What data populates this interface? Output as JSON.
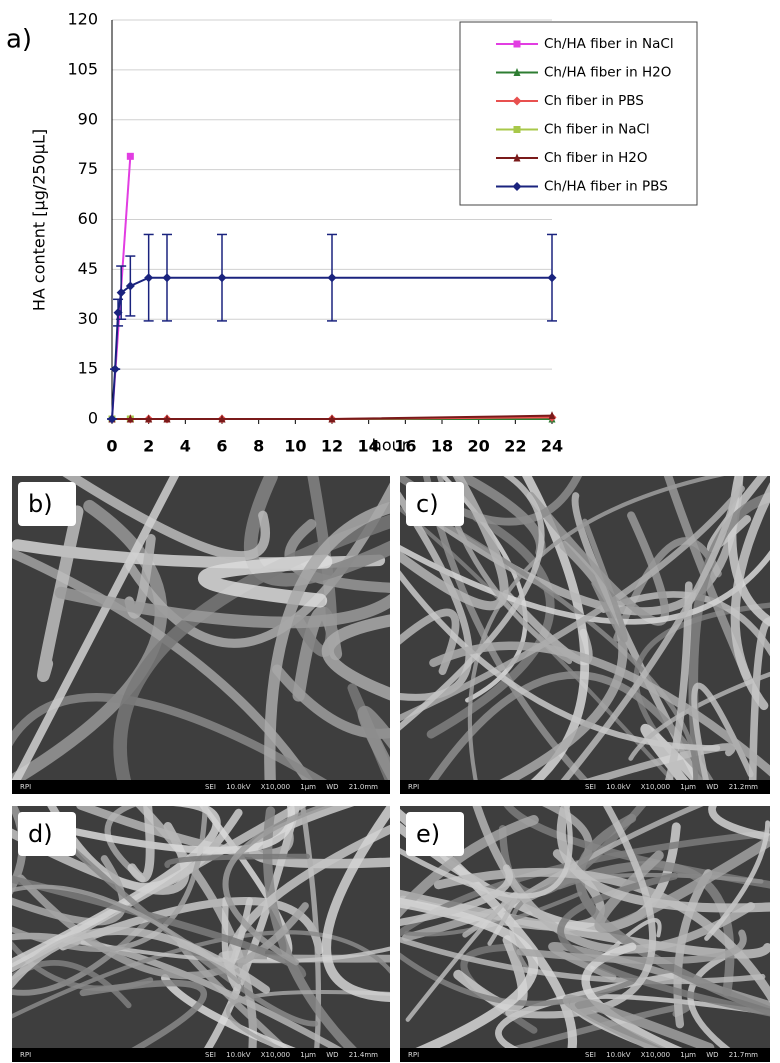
{
  "chart_data": {
    "type": "line",
    "panel_label": "a)",
    "xlabel": "hour",
    "ylabel": "HA content [µg/250µL]",
    "xlim": [
      0,
      24
    ],
    "xticks": [
      0,
      2,
      4,
      6,
      8,
      10,
      12,
      14,
      16,
      18,
      20,
      22,
      24
    ],
    "ylim": [
      0,
      120
    ],
    "yticks": [
      0,
      15,
      30,
      45,
      60,
      75,
      90,
      105,
      120
    ],
    "grid": true,
    "legend": "upper right",
    "series": [
      {
        "name": "Ch/HA fiber in NaCl",
        "color": "#e23de2",
        "marker": "square",
        "x": [
          0,
          1
        ],
        "values": [
          0,
          79
        ]
      },
      {
        "name": "Ch/HA fiber in H2O",
        "color": "#2e7d32",
        "marker": "triangle",
        "x": [
          0,
          1,
          2,
          3,
          6,
          12,
          24
        ],
        "values": [
          0,
          0,
          0,
          0,
          0,
          0,
          0
        ]
      },
      {
        "name": "Ch fiber in PBS",
        "color": "#e8504f",
        "marker": "diamond",
        "x": [
          0,
          1,
          2,
          3,
          6,
          12,
          24
        ],
        "values": [
          0,
          0,
          0,
          0,
          0,
          0,
          0.5
        ]
      },
      {
        "name": "Ch fiber in NaCl",
        "color": "#a8c84a",
        "marker": "square",
        "x": [
          0,
          1
        ],
        "values": [
          0,
          0
        ]
      },
      {
        "name": "Ch fiber in H2O",
        "color": "#7a1a1a",
        "marker": "triangle",
        "x": [
          0,
          1,
          2,
          3,
          6,
          12,
          24
        ],
        "values": [
          0,
          0,
          0,
          0,
          0,
          0,
          1
        ]
      },
      {
        "name": "Ch/HA fiber in PBS",
        "color": "#1a237e",
        "marker": "diamond",
        "x": [
          0,
          0.17,
          0.33,
          0.5,
          1,
          2,
          3,
          6,
          12,
          24
        ],
        "values": [
          0,
          15,
          32,
          38,
          40,
          42.5,
          42.5,
          42.5,
          42.5,
          42.5
        ],
        "errors": [
          0,
          0,
          4,
          8,
          9,
          13,
          13,
          13,
          13,
          13
        ]
      }
    ]
  },
  "sem_panels": [
    {
      "label": "b)",
      "source": "RPI",
      "info": "SEI 10.0kV X10,000 1µm WD 21.0mm"
    },
    {
      "label": "c)",
      "source": "RPI",
      "info": "SEI 10.0kV X10,000 1µm WD 21.2mm"
    },
    {
      "label": "d)",
      "source": "RPI",
      "info": "SEI 10.0kV X10,000 1µm WD 21.4mm"
    },
    {
      "label": "e)",
      "source": "RPI",
      "info": "SEI 10.0kV X10,000 1µm WD 21.7mm"
    }
  ]
}
